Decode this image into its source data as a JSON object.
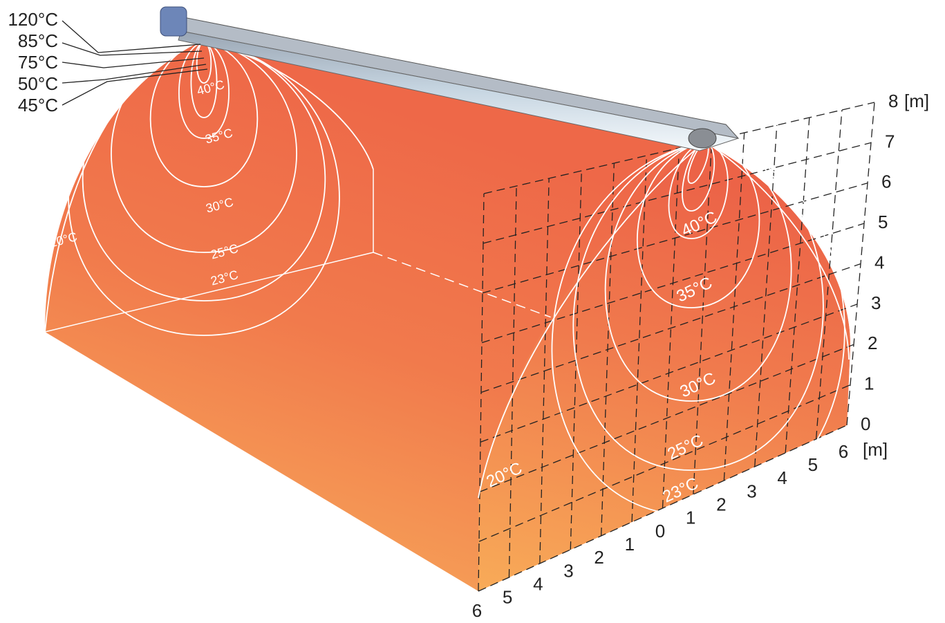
{
  "legend_labels": [
    "120°C",
    "85°C",
    "75°C",
    "50°C",
    "45°C"
  ],
  "left_face_labels": [
    "40°C",
    "35°C",
    "30°C",
    "25°C",
    "23°C",
    "20°C"
  ],
  "right_face_labels": [
    "40°C",
    "35°C",
    "30°C",
    "25°C",
    "23°C",
    "20°C"
  ],
  "height_axis": {
    "ticks": [
      0,
      1,
      2,
      3,
      4,
      5,
      6,
      7,
      8
    ],
    "unit": "[m]"
  },
  "width_axis": {
    "ticks": [
      6,
      5,
      4,
      3,
      2,
      1,
      0,
      1,
      2,
      3,
      4,
      5,
      6
    ],
    "unit": "[m]"
  }
}
